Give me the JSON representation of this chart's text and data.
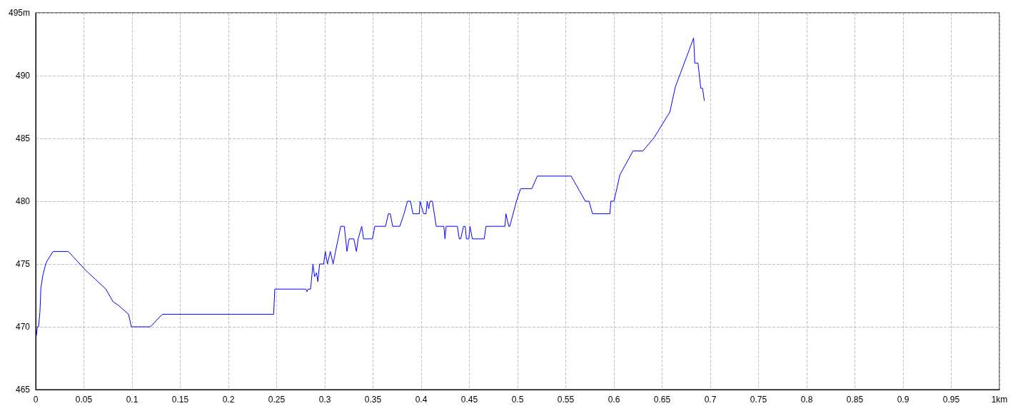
{
  "chart_data": {
    "type": "line",
    "x": [
      0.0008,
      0.0017,
      0.003,
      0.0044,
      0.0054,
      0.0074,
      0.0104,
      0.0123,
      0.018,
      0.0338,
      0.0519,
      0.0617,
      0.0728,
      0.0802,
      0.0852,
      0.0963,
      0.0993,
      0.119,
      0.1314,
      0.2469,
      0.2481,
      0.2489,
      0.2802,
      0.2815,
      0.2827,
      0.2852,
      0.2877,
      0.2894,
      0.2914,
      0.2928,
      0.2946,
      0.2988,
      0.3005,
      0.3027,
      0.3057,
      0.3086,
      0.3111,
      0.3165,
      0.3202,
      0.323,
      0.3252,
      0.3301,
      0.3328,
      0.3346,
      0.3383,
      0.3402,
      0.3494,
      0.3519,
      0.363,
      0.3659,
      0.3679,
      0.3704,
      0.3778,
      0.3822,
      0.3857,
      0.3889,
      0.3914,
      0.398,
      0.3988,
      0.4025,
      0.405,
      0.4062,
      0.4079,
      0.4091,
      0.4116,
      0.4136,
      0.4156,
      0.4235,
      0.4247,
      0.4259,
      0.4375,
      0.4395,
      0.441,
      0.4439,
      0.4457,
      0.4469,
      0.4494,
      0.4506,
      0.4531,
      0.4654,
      0.4672,
      0.4815,
      0.4869,
      0.4879,
      0.4909,
      0.4919,
      0.4988,
      0.5032,
      0.5148,
      0.5205,
      0.5556,
      0.5704,
      0.5741,
      0.5778,
      0.5958,
      0.5968,
      0.6,
      0.6062,
      0.6198,
      0.6301,
      0.642,
      0.658,
      0.6637,
      0.6827,
      0.6839,
      0.6872,
      0.6901,
      0.6919,
      0.6938
    ],
    "series": [
      {
        "color": "#0000ff",
        "values": [
          469.3,
          470,
          470,
          471.2,
          473.1,
          474.1,
          475,
          475.3,
          476,
          476,
          474.5,
          473.8,
          473,
          472,
          471.75,
          471,
          470,
          470,
          471,
          471,
          473,
          473,
          473,
          472.8,
          473,
          473,
          475,
          474,
          474.3,
          473.6,
          475,
          475,
          476,
          475,
          476,
          475,
          476,
          478,
          478,
          476,
          477,
          477,
          476,
          477,
          478,
          477,
          477,
          478,
          478,
          479,
          479,
          478,
          478,
          479,
          480,
          480,
          479,
          479,
          480,
          479,
          479,
          480,
          479.4,
          480,
          480,
          479,
          478,
          478,
          477,
          478,
          478,
          477,
          477,
          478,
          478,
          477,
          477,
          478,
          477,
          477,
          478,
          478,
          478,
          479,
          478,
          478,
          480,
          481,
          481,
          482,
          482,
          480,
          480,
          479,
          479,
          480,
          480,
          482.1,
          484,
          484,
          485.1,
          487.1,
          489.1,
          493,
          491,
          491,
          489,
          489,
          488
        ]
      }
    ],
    "xlim": [
      0,
      1
    ],
    "ylim": [
      465,
      495
    ],
    "xticks": [
      0,
      0.05,
      0.1,
      0.15,
      0.2,
      0.25,
      0.3,
      0.35,
      0.4,
      0.45,
      0.5,
      0.55,
      0.6,
      0.65,
      0.7,
      0.75,
      0.8,
      0.85,
      0.9,
      0.95,
      {
        "value": 1,
        "label": "1km"
      }
    ],
    "yticks": [
      465,
      470,
      475,
      480,
      485,
      490,
      {
        "value": 495,
        "label": "495m"
      }
    ],
    "grid": true,
    "marker": "none",
    "line_style": "solid"
  }
}
